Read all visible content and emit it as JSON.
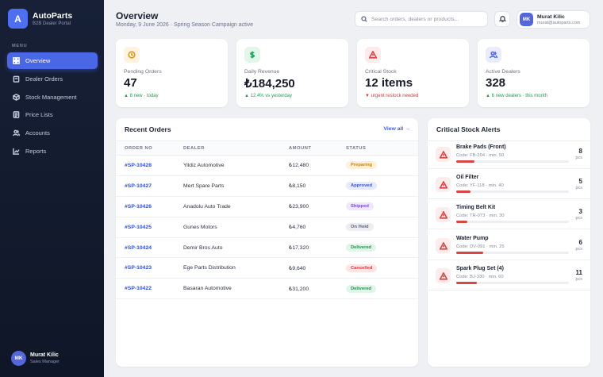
{
  "brand": {
    "logo": "A",
    "name": "AutoParts",
    "subtitle": "B2B Dealer Portal"
  },
  "sidebar": {
    "menu_title": "MENU",
    "items": [
      {
        "label": "Overview",
        "icon": "grid-icon",
        "active": true
      },
      {
        "label": "Dealer Orders",
        "icon": "clipboard-icon",
        "active": false
      },
      {
        "label": "Stock Management",
        "icon": "box-icon",
        "active": false
      },
      {
        "label": "Price Lists",
        "icon": "list-icon",
        "active": false
      },
      {
        "label": "Accounts",
        "icon": "users-icon",
        "active": false
      },
      {
        "label": "Reports",
        "icon": "chart-icon",
        "active": false
      }
    ],
    "user": {
      "initials": "MK",
      "name": "Murat Kilic",
      "role": "Sales Manager"
    }
  },
  "header": {
    "title": "Overview",
    "subtitle": "Monday, 9 June 2026 · Spring Season Campaign active",
    "search_placeholder": "Search orders, dealers or products...",
    "user": {
      "initials": "MK",
      "name": "Murat Kilic",
      "email": "murat@autoparts.com"
    }
  },
  "kpis": [
    {
      "label": "Pending Orders",
      "value": "47",
      "delta": "▲ 8 new · today",
      "icon": "clock-icon",
      "icon_color": "#d99a1c",
      "icon_bg": "#fdf3de",
      "delta_color": "#1f9d55"
    },
    {
      "label": "Daily Revenue",
      "value": "₺184,250",
      "delta": "▲ 12.4% vs yesterday",
      "icon": "dollar-icon",
      "icon_color": "#23a45d",
      "icon_bg": "#e3f6ea",
      "delta_color": "#1f9d55"
    },
    {
      "label": "Critical Stock",
      "value": "12 items",
      "delta": "▼ urgent restock needed",
      "icon": "alert-icon",
      "icon_color": "#d94545",
      "icon_bg": "#fdeaea",
      "delta_color": "#d23b3b"
    },
    {
      "label": "Active Dealers",
      "value": "328",
      "delta": "▲ 6 new dealers · this month",
      "icon": "users-icon",
      "icon_color": "#4f66e0",
      "icon_bg": "#e8ecfd",
      "delta_color": "#1f9d55"
    }
  ],
  "orders": {
    "title": "Recent Orders",
    "view_all": "View all →",
    "columns": [
      "ORDER NO",
      "DEALER",
      "AMOUNT",
      "STATUS"
    ],
    "rows": [
      {
        "id": "#SP-10428",
        "dealer": "Yildiz Automotive",
        "amount": "₺12,480",
        "status": "Preparing",
        "fg": "#c7811a",
        "bg": "#fdf1db"
      },
      {
        "id": "#SP-10427",
        "dealer": "Mert Spare Parts",
        "amount": "₺8,150",
        "status": "Approved",
        "fg": "#3e56c9",
        "bg": "#e6eafc"
      },
      {
        "id": "#SP-10426",
        "dealer": "Anadolu Auto Trade",
        "amount": "₺23,900",
        "status": "Shipped",
        "fg": "#7b4cc8",
        "bg": "#efe7fb"
      },
      {
        "id": "#SP-10425",
        "dealer": "Gunes Motors",
        "amount": "₺4,760",
        "status": "On Hold",
        "fg": "#5d6475",
        "bg": "#eceef2"
      },
      {
        "id": "#SP-10424",
        "dealer": "Demir Bros Auto",
        "amount": "₺17,320",
        "status": "Delivered",
        "fg": "#1f9150",
        "bg": "#e2f5e9"
      },
      {
        "id": "#SP-10423",
        "dealer": "Ege Parts Distribution",
        "amount": "₺9,640",
        "status": "Cancelled",
        "fg": "#cf3d3d",
        "bg": "#fde6e6"
      },
      {
        "id": "#SP-10422",
        "dealer": "Basaran Automotive",
        "amount": "₺31,200",
        "status": "Delivered",
        "fg": "#1f9150",
        "bg": "#e2f5e9"
      }
    ]
  },
  "stock": {
    "title": "Critical Stock Alerts",
    "unit": "pcs",
    "items": [
      {
        "name": "Brake Pads (Front)",
        "code": "Code: FB-204 · min. 50",
        "qty": "8",
        "level": 0.16
      },
      {
        "name": "Oil Filter",
        "code": "Code: YF-118 · min. 40",
        "qty": "5",
        "level": 0.125
      },
      {
        "name": "Timing Belt Kit",
        "code": "Code: TR-073 · min. 30",
        "qty": "3",
        "level": 0.1
      },
      {
        "name": "Water Pump",
        "code": "Code: DV-091 · min. 25",
        "qty": "6",
        "level": 0.24
      },
      {
        "name": "Spark Plug Set (4)",
        "code": "Code: BJ-330 · min. 60",
        "qty": "11",
        "level": 0.18
      }
    ]
  }
}
